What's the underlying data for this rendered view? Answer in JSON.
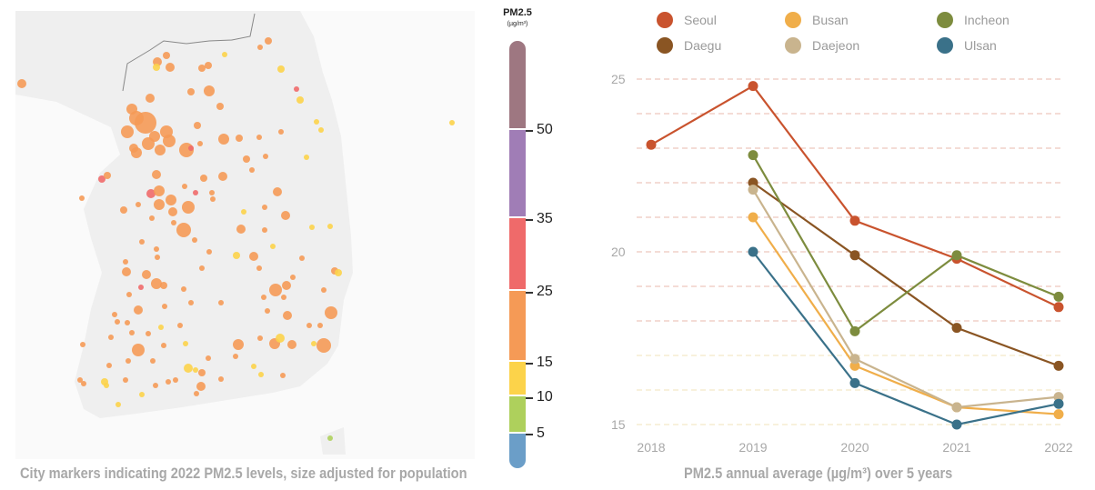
{
  "map": {
    "caption": "City markers indicating 2022 PM2.5 levels, size adjusted for population",
    "scale": {
      "title": "PM2.5",
      "unit": "(µg/m³)",
      "ticks": [
        "50",
        "35",
        "25",
        "15",
        "10",
        "5"
      ],
      "bands": [
        {
          "range": "50+",
          "color": "#9e7781"
        },
        {
          "range": "35-50",
          "color": "#a07db6"
        },
        {
          "range": "25-35",
          "color": "#ef6a6a"
        },
        {
          "range": "15-25",
          "color": "#f59a56"
        },
        {
          "range": "10-15",
          "color": "#fcd34a"
        },
        {
          "range": "5-10",
          "color": "#aed05c"
        },
        {
          "range": "0-5",
          "color": "#6b9ec8"
        }
      ]
    }
  },
  "chart_data": {
    "type": "line",
    "title": "PM2.5 annual average (µg/m³) over 5 years",
    "x": [
      "2018",
      "2019",
      "2020",
      "2021",
      "2022"
    ],
    "ylim": [
      15,
      25
    ],
    "yticks": [
      "25",
      "20",
      "15"
    ],
    "grid": true,
    "legend_position": "top",
    "series": [
      {
        "name": "Seoul",
        "color": "#c9532e",
        "values": [
          23.1,
          24.8,
          20.9,
          19.8,
          18.4
        ]
      },
      {
        "name": "Daegu",
        "color": "#8a5523",
        "values": [
          null,
          22.0,
          19.9,
          17.8,
          16.7
        ]
      },
      {
        "name": "Busan",
        "color": "#f0ae4a",
        "values": [
          null,
          21.0,
          16.7,
          15.5,
          15.3
        ]
      },
      {
        "name": "Daejeon",
        "color": "#c9b48e",
        "values": [
          null,
          21.8,
          16.9,
          15.5,
          15.8
        ]
      },
      {
        "name": "Incheon",
        "color": "#7d8c3e",
        "values": [
          null,
          22.8,
          17.7,
          19.9,
          18.7
        ]
      },
      {
        "name": "Ulsan",
        "color": "#3a7189",
        "values": [
          null,
          20.0,
          16.2,
          15.0,
          15.6
        ]
      }
    ]
  }
}
